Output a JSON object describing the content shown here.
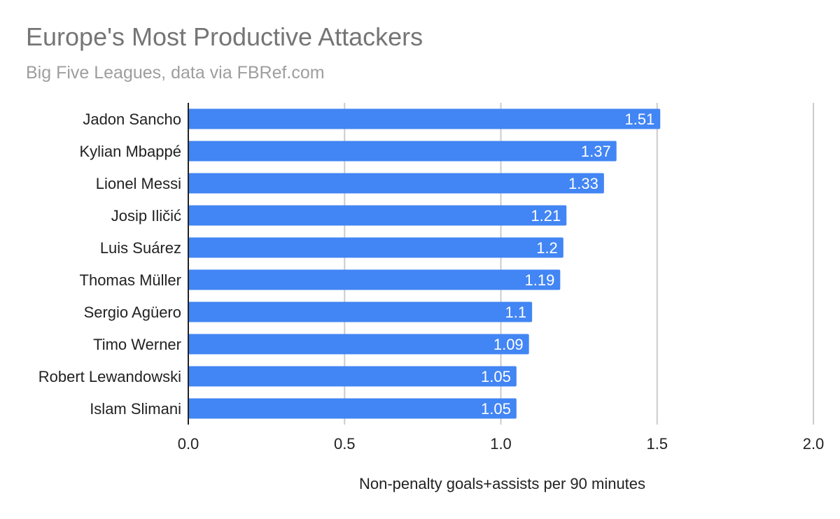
{
  "chart_data": {
    "type": "bar",
    "orientation": "horizontal",
    "title": "Europe's Most Productive Attackers",
    "subtitle": "Big Five Leagues, data via FBRef.com",
    "xlabel": "Non-penalty goals+assists per 90 minutes",
    "ylabel": "",
    "xlim": [
      0,
      2.0
    ],
    "x_ticks": [
      "0.0",
      "0.5",
      "1.0",
      "1.5",
      "2.0"
    ],
    "categories": [
      "Jadon Sancho",
      "Kylian Mbappé",
      "Lionel Messi",
      "Josip Iličić",
      "Luis Suárez",
      "Thomas Müller",
      "Sergio Agüero",
      "Timo Werner",
      "Robert Lewandowski",
      "Islam Slimani"
    ],
    "values": [
      1.51,
      1.37,
      1.33,
      1.21,
      1.2,
      1.19,
      1.1,
      1.09,
      1.05,
      1.05
    ],
    "data_labels": [
      "1.51",
      "1.37",
      "1.33",
      "1.21",
      "1.2",
      "1.19",
      "1.1",
      "1.09",
      "1.05",
      "1.05"
    ],
    "grid": true,
    "legend": "none",
    "bar_color": "#4285f4"
  }
}
